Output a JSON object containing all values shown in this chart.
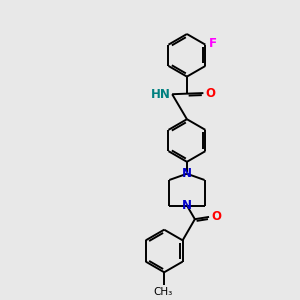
{
  "background_color": "#e8e8e8",
  "bond_color": "#000000",
  "N_color": "#0000cd",
  "O_color": "#ff0000",
  "F_color": "#ff00ff",
  "H_color": "#008080",
  "line_width": 1.4,
  "figsize": [
    3.0,
    3.0
  ],
  "dpi": 100,
  "xlim": [
    0,
    10
  ],
  "ylim": [
    0,
    10
  ]
}
